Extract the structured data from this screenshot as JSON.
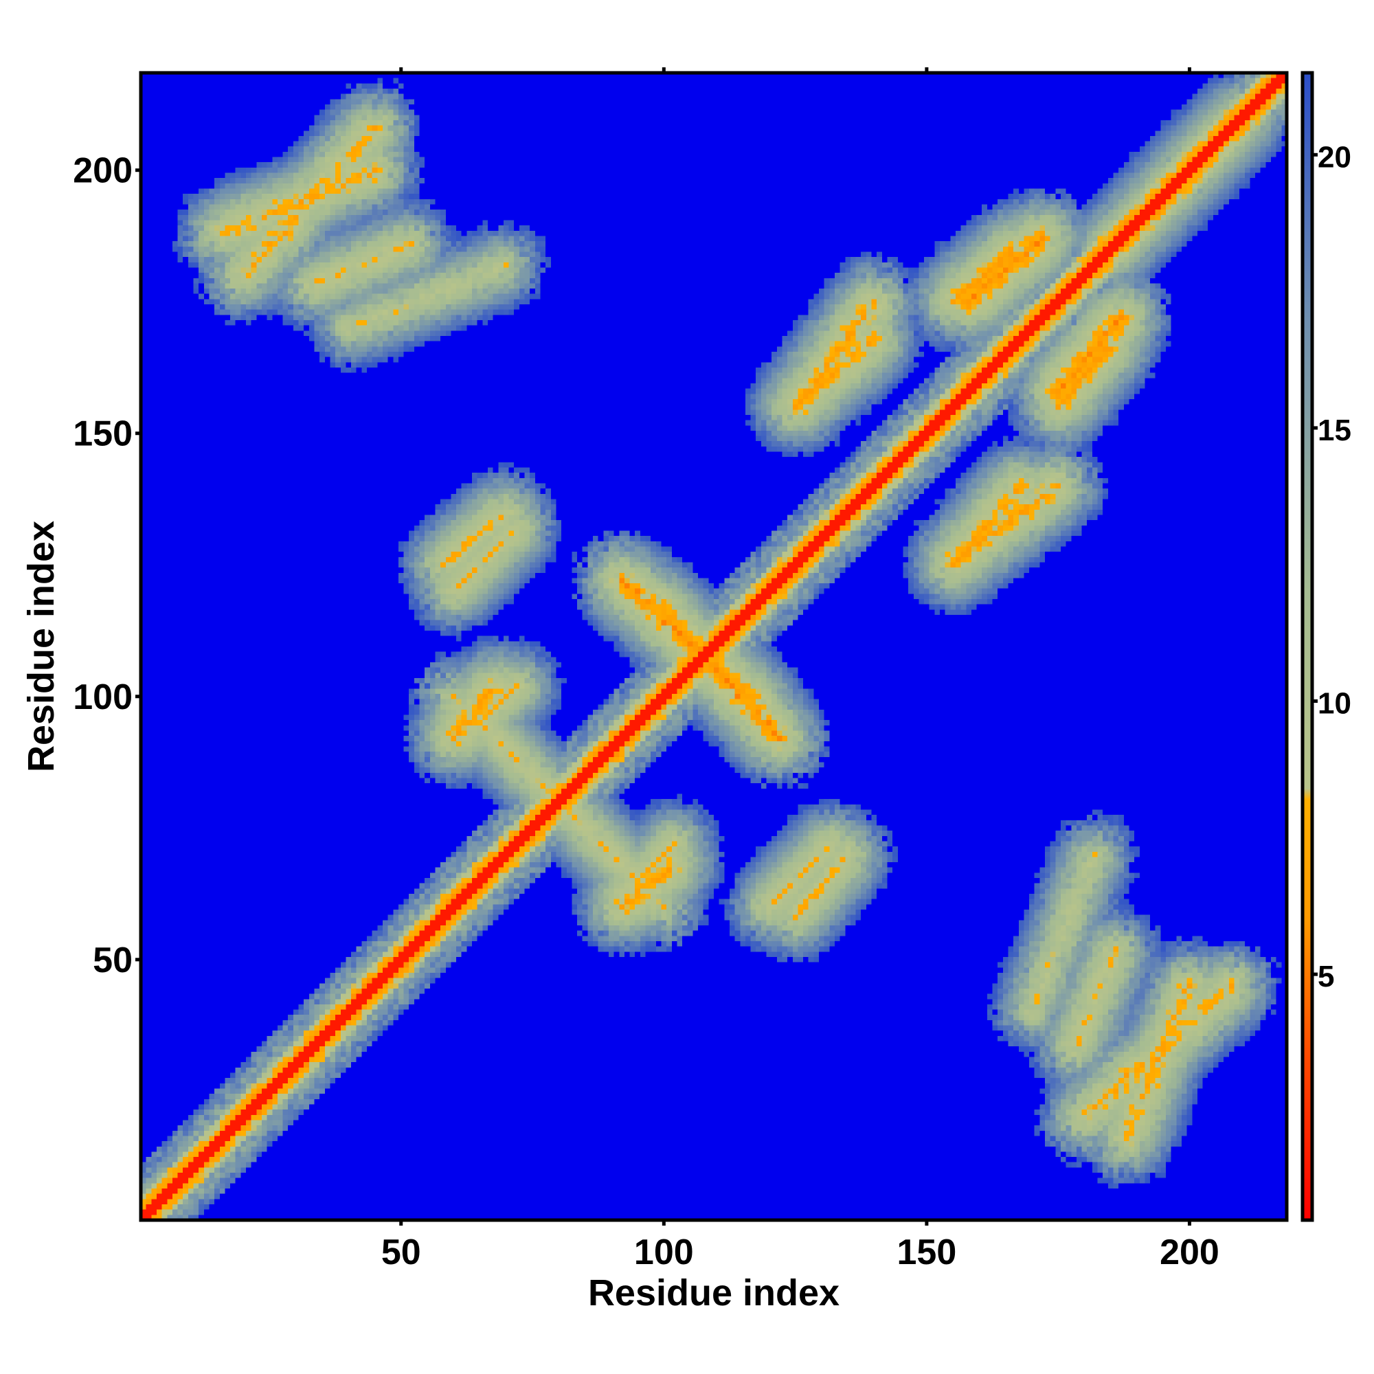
{
  "chart_data": {
    "type": "heatmap",
    "title": "",
    "xlabel": "Residue index",
    "ylabel": "Residue index",
    "xlim": [
      1,
      218
    ],
    "ylim": [
      1,
      218
    ],
    "x_ticks": [
      50,
      100,
      150,
      200
    ],
    "y_ticks": [
      50,
      100,
      150,
      200
    ],
    "colorbar": {
      "ticks": [
        5,
        10,
        15,
        20
      ],
      "range": [
        0.5,
        21.5
      ],
      "stops": [
        {
          "value": 0.5,
          "color": "#ff0000"
        },
        {
          "value": 3.5,
          "color": "#ff4a00"
        },
        {
          "value": 6.0,
          "color": "#ff9a00"
        },
        {
          "value": 8.2,
          "color": "#ffb000"
        },
        {
          "value": 8.4,
          "color": "#b9c48a"
        },
        {
          "value": 12.0,
          "color": "#a6bc92"
        },
        {
          "value": 17.0,
          "color": "#6f8fb0"
        },
        {
          "value": 21.5,
          "color": "#2c4fc9"
        }
      ]
    },
    "background_color": "#0000ee",
    "diagonal_color": "#ff0000",
    "contact_cutoff": 21,
    "contact_features": [
      {
        "kind": "parallel",
        "x": [
          16,
          45
        ],
        "y": [
          188,
          200
        ],
        "value": 6
      },
      {
        "kind": "parallel",
        "x": [
          33,
          52
        ],
        "y": [
          178,
          186
        ],
        "value": 7
      },
      {
        "kind": "parallel",
        "x": [
          40,
          70
        ],
        "y": [
          170,
          182
        ],
        "value": 8
      },
      {
        "kind": "cross",
        "x": [
          68,
          100
        ],
        "y": [
          60,
          92
        ],
        "value": 7
      },
      {
        "kind": "cross",
        "x": [
          92,
          118
        ],
        "y": [
          98,
          122
        ],
        "value": 5
      },
      {
        "kind": "parallel",
        "x": [
          125,
          140
        ],
        "y": [
          155,
          168
        ],
        "value": 6
      },
      {
        "kind": "parallel",
        "x": [
          155,
          175
        ],
        "y": [
          125,
          140
        ],
        "value": 6
      },
      {
        "kind": "parallel",
        "x": [
          158,
          172
        ],
        "y": [
          175,
          187
        ],
        "value": 5
      },
      {
        "kind": "parallel",
        "x": [
          180,
          208
        ],
        "y": [
          20,
          45
        ],
        "value": 6
      },
      {
        "kind": "parallel",
        "x": [
          175,
          185
        ],
        "y": [
          155,
          167
        ],
        "value": 6
      },
      {
        "kind": "parallel",
        "x": [
          60,
          72
        ],
        "y": [
          120,
          132
        ],
        "value": 7
      },
      {
        "kind": "parallel",
        "x": [
          125,
          135
        ],
        "y": [
          58,
          70
        ],
        "value": 7
      },
      {
        "kind": "parallel",
        "x": [
          62,
          72
        ],
        "y": [
          92,
          102
        ],
        "value": 7
      },
      {
        "kind": "parallel",
        "x": [
          92,
          102
        ],
        "y": [
          60,
          68
        ],
        "value": 6
      },
      {
        "kind": "parallel",
        "x": [
          185,
          210
        ],
        "y": [
          185,
          210
        ],
        "value": 6
      }
    ]
  }
}
